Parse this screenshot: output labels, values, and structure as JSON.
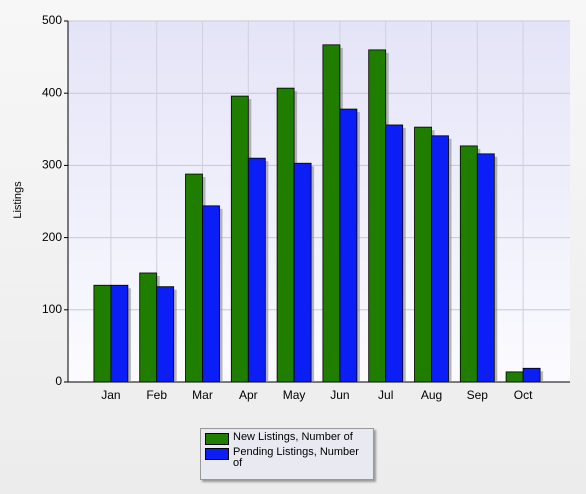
{
  "chart_data": {
    "type": "bar",
    "y_label": "Listings",
    "categories": [
      "Jan",
      "Feb",
      "Mar",
      "Apr",
      "May",
      "Jun",
      "Jul",
      "Aug",
      "Sep",
      "Oct"
    ],
    "series": [
      {
        "name": "New Listings, Number of",
        "color": "#1f7d00",
        "values": [
          134,
          151,
          288,
          396,
          407,
          467,
          460,
          353,
          327,
          14
        ]
      },
      {
        "name": "Pending Listings, Number of",
        "color": "#0a1ef5",
        "values": [
          134,
          132,
          244,
          310,
          303,
          378,
          356,
          341,
          316,
          19
        ]
      }
    ],
    "ylim": [
      0,
      500
    ],
    "yticks": [
      0,
      100,
      200,
      300,
      400,
      500
    ],
    "grid": true
  }
}
